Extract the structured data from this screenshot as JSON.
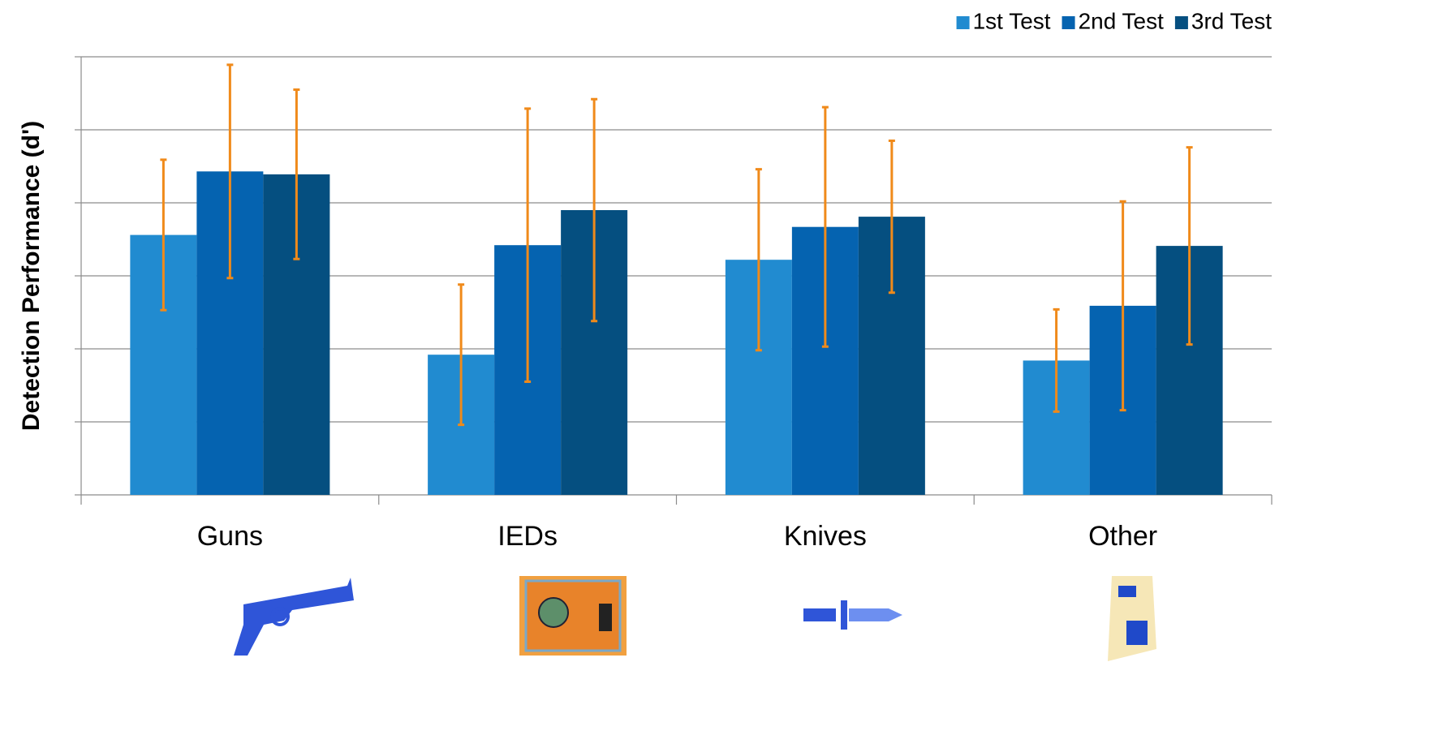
{
  "chart_data": {
    "type": "bar",
    "y_label": "Detection Performance (d')",
    "categories": [
      "Guns",
      "IEDs",
      "Knives",
      "Other"
    ],
    "series": [
      {
        "name": "1st Test",
        "color": "#218bd0",
        "values": [
          3.56,
          1.92,
          3.22,
          1.84
        ],
        "errors": [
          1.03,
          0.96,
          1.24,
          0.7
        ]
      },
      {
        "name": "2nd Test",
        "color": "#0563b0",
        "values": [
          4.43,
          3.42,
          3.67,
          2.59
        ],
        "errors": [
          1.46,
          1.87,
          1.64,
          1.43
        ]
      },
      {
        "name": "3rd Test",
        "color": "#054f80",
        "values": [
          4.39,
          3.9,
          3.81,
          3.41
        ],
        "errors": [
          1.16,
          1.52,
          1.04,
          1.35
        ]
      }
    ],
    "error_color": "#f08a1a",
    "ylim": [
      0,
      6
    ],
    "yticks": [
      0,
      1,
      2,
      3,
      4,
      5,
      6
    ],
    "show_ytick_labels": false,
    "grid": true,
    "legend": "top-right"
  }
}
